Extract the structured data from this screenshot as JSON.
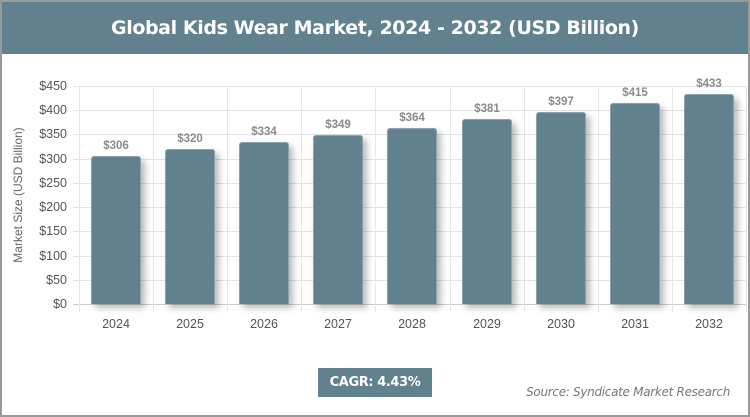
{
  "header": {
    "title": "Global Kids Wear Market, 2024 - 2032 (USD Billion)"
  },
  "colors": {
    "brand": "#62818F",
    "bar": "#62818F",
    "border": "#9a9a9a",
    "grid": "#e3e3e3"
  },
  "footer": {
    "cagr_label": "CAGR: 4.43%",
    "source": "Source: Syndicate Market Research"
  },
  "chart_data": {
    "type": "bar",
    "title": "Global Kids Wear Market, 2024 - 2032 (USD Billion)",
    "xlabel": "",
    "ylabel": "Market Size (USD Billion)",
    "categories": [
      "2024",
      "2025",
      "2026",
      "2027",
      "2028",
      "2029",
      "2030",
      "2031",
      "2032"
    ],
    "values": [
      306,
      320,
      334,
      349,
      364,
      381,
      397,
      415,
      433
    ],
    "value_labels": [
      "$306",
      "$320",
      "$334",
      "$349",
      "$364",
      "$381",
      "$397",
      "$415",
      "$433"
    ],
    "ylim": [
      0,
      450
    ],
    "yticks": [
      0,
      50,
      100,
      150,
      200,
      250,
      300,
      350,
      400,
      450
    ],
    "ytick_labels": [
      "$0",
      "$50",
      "$100",
      "$150",
      "$200",
      "$250",
      "$300",
      "$350",
      "$400",
      "$450"
    ],
    "grid": true,
    "legend": "none",
    "annotations": [
      "CAGR: 4.43%",
      "Source: Syndicate Market Research"
    ]
  }
}
